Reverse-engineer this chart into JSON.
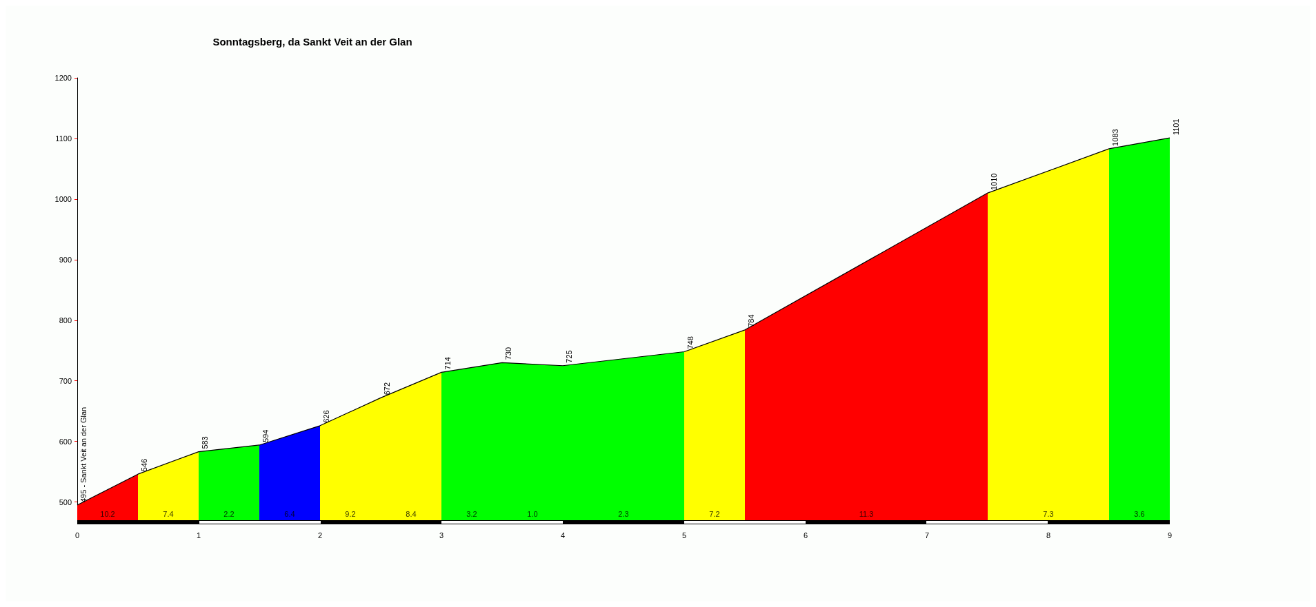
{
  "chart_data": {
    "type": "area",
    "title": "Sonntagsberg, da Sankt Veit an der Glan",
    "xlim": [
      0,
      9
    ],
    "xticks": [
      0,
      1,
      2,
      3,
      4,
      5,
      6,
      7,
      8,
      9
    ],
    "ylim": [
      470,
      1200
    ],
    "yticks": [
      500,
      600,
      700,
      800,
      900,
      1000,
      1100,
      1200
    ],
    "grid": false,
    "marker": "none",
    "series": [
      {
        "color": "#ff0000",
        "x": [
          0,
          0.5
        ],
        "values": [
          495,
          546
        ]
      },
      {
        "color": "#ffff00",
        "x": [
          0.5,
          1
        ],
        "values": [
          546,
          583
        ]
      },
      {
        "color": "#00ff00",
        "x": [
          1,
          1.5
        ],
        "values": [
          583,
          594
        ]
      },
      {
        "color": "#0000ff",
        "x": [
          1.5,
          2
        ],
        "values": [
          594,
          626
        ]
      },
      {
        "color": "#ffff00",
        "x": [
          2,
          2.5
        ],
        "values": [
          626,
          672
        ]
      },
      {
        "color": "#ffff00",
        "x": [
          2.5,
          3
        ],
        "values": [
          672,
          714
        ]
      },
      {
        "color": "#00ff00",
        "x": [
          3,
          3.5
        ],
        "values": [
          714,
          730
        ]
      },
      {
        "color": "#00ff00",
        "x": [
          3.5,
          4
        ],
        "values": [
          730,
          725
        ]
      },
      {
        "color": "#00ff00",
        "x": [
          4,
          5
        ],
        "values": [
          725,
          748
        ]
      },
      {
        "color": "#ffff00",
        "x": [
          5,
          5.5
        ],
        "values": [
          748,
          784
        ]
      },
      {
        "color": "#ff0000",
        "x": [
          5.5,
          7.5
        ],
        "values": [
          784,
          1010
        ]
      },
      {
        "color": "#ffff00",
        "x": [
          7.5,
          8.5
        ],
        "values": [
          1010,
          1083
        ]
      },
      {
        "color": "#00ff00",
        "x": [
          8.5,
          9
        ],
        "values": [
          1083,
          1101
        ]
      },
      {
        "type": "line",
        "color": "#000000",
        "x": [
          0,
          0.5,
          1,
          1.5,
          2,
          2.5,
          3,
          3.5,
          4,
          5,
          5.5,
          7.5,
          8.5,
          9
        ],
        "values": [
          495,
          546,
          583,
          594,
          626,
          672,
          714,
          730,
          725,
          748,
          784,
          1010,
          1083,
          1101
        ],
        "value_labels": [
          "495 - Sankt Veit an der Glan",
          "546",
          "583",
          "594",
          "626",
          "672",
          "714",
          "730",
          "725",
          "748",
          "784",
          "1010",
          "1083",
          "1101"
        ]
      }
    ],
    "annotations": [
      "10.2",
      "7.4",
      "2.2",
      "6.4",
      "9.2",
      "8.4",
      "3.2",
      "1.0",
      "2.3",
      "7.2",
      "11.3",
      "7.3",
      "3.6"
    ]
  }
}
